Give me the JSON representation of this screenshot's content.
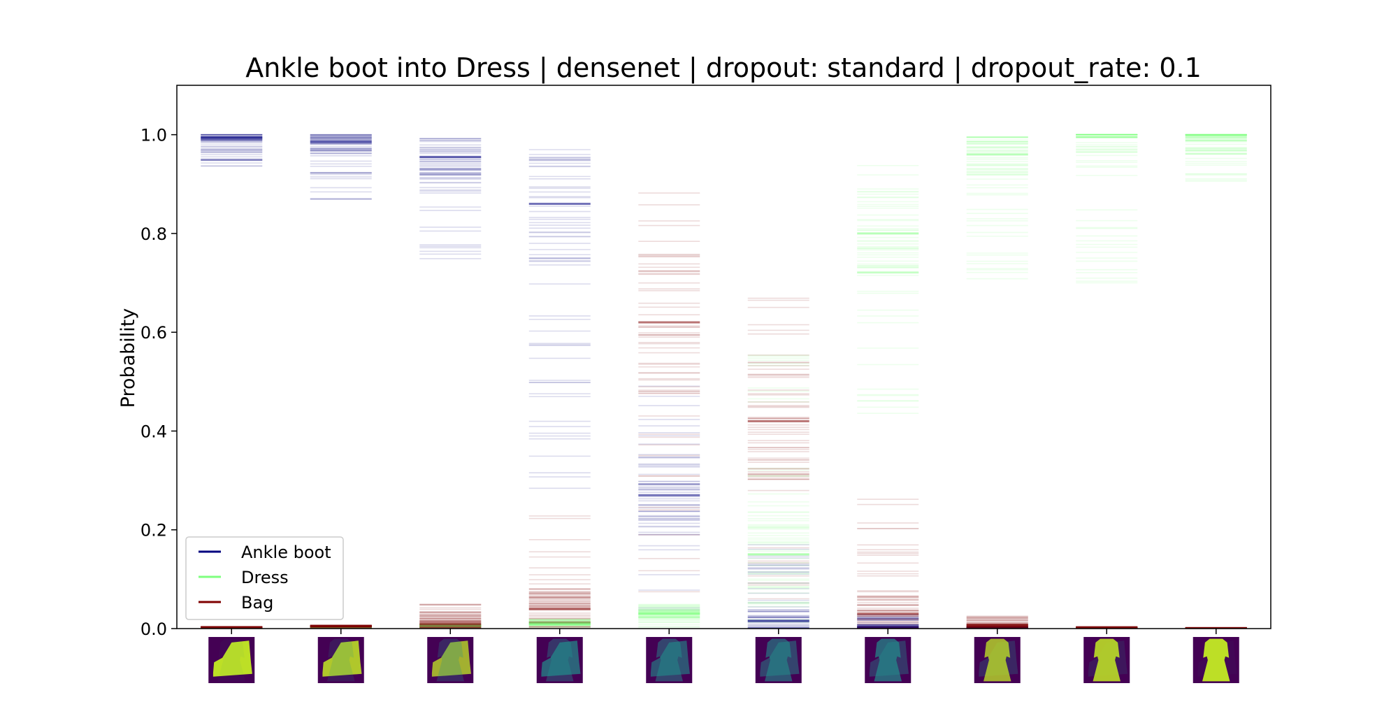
{
  "chart_data": {
    "type": "line",
    "title": "Ankle boot into Dress | densenet | dropout: standard | dropout_rate: 0.1",
    "xlabel": "",
    "ylabel": "Probability",
    "ylim": [
      0,
      1.1
    ],
    "yticks": [
      "0.0",
      "0.2",
      "0.4",
      "0.6",
      "0.8",
      "1.0"
    ],
    "grid": false,
    "legend_position": "lower-left",
    "steps": 10,
    "series": [
      {
        "name": "Ankle boot",
        "color": "#00007f",
        "median": [
          0.995,
          0.985,
          0.955,
          0.86,
          0.27,
          0.015,
          0.003,
          0.001,
          0.001,
          0.0
        ],
        "min": [
          0.933,
          0.866,
          0.745,
          0.276,
          0.02,
          0.0,
          0.0,
          0.0,
          0.0,
          0.0
        ],
        "max": [
          1.0,
          1.0,
          0.995,
          0.975,
          0.5,
          0.17,
          0.03,
          0.005,
          0.002,
          0.001
        ]
      },
      {
        "name": "Dress",
        "color": "#7fff7f",
        "median": [
          0.001,
          0.002,
          0.005,
          0.01,
          0.03,
          0.15,
          0.8,
          0.96,
          0.995,
          0.999
        ],
        "min": [
          0.0,
          0.0,
          0.0,
          0.0,
          0.0,
          0.0,
          0.42,
          0.68,
          0.65,
          0.9
        ],
        "max": [
          0.002,
          0.005,
          0.01,
          0.02,
          0.05,
          0.6,
          0.96,
          0.995,
          1.0,
          1.0
        ]
      },
      {
        "name": "Bag",
        "color": "#7f0000",
        "median": [
          0.003,
          0.005,
          0.01,
          0.04,
          0.62,
          0.42,
          0.03,
          0.005,
          0.002,
          0.001
        ],
        "min": [
          0.0,
          0.0,
          0.0,
          0.0,
          0.05,
          0.06,
          0.0,
          0.0,
          0.0,
          0.0
        ],
        "max": [
          0.004,
          0.008,
          0.05,
          0.23,
          0.9,
          0.78,
          0.28,
          0.025,
          0.004,
          0.002
        ]
      }
    ],
    "thumbnail_colors": {
      "background": "#440154",
      "mid": "#21918c",
      "bright": "#bddf26"
    }
  }
}
